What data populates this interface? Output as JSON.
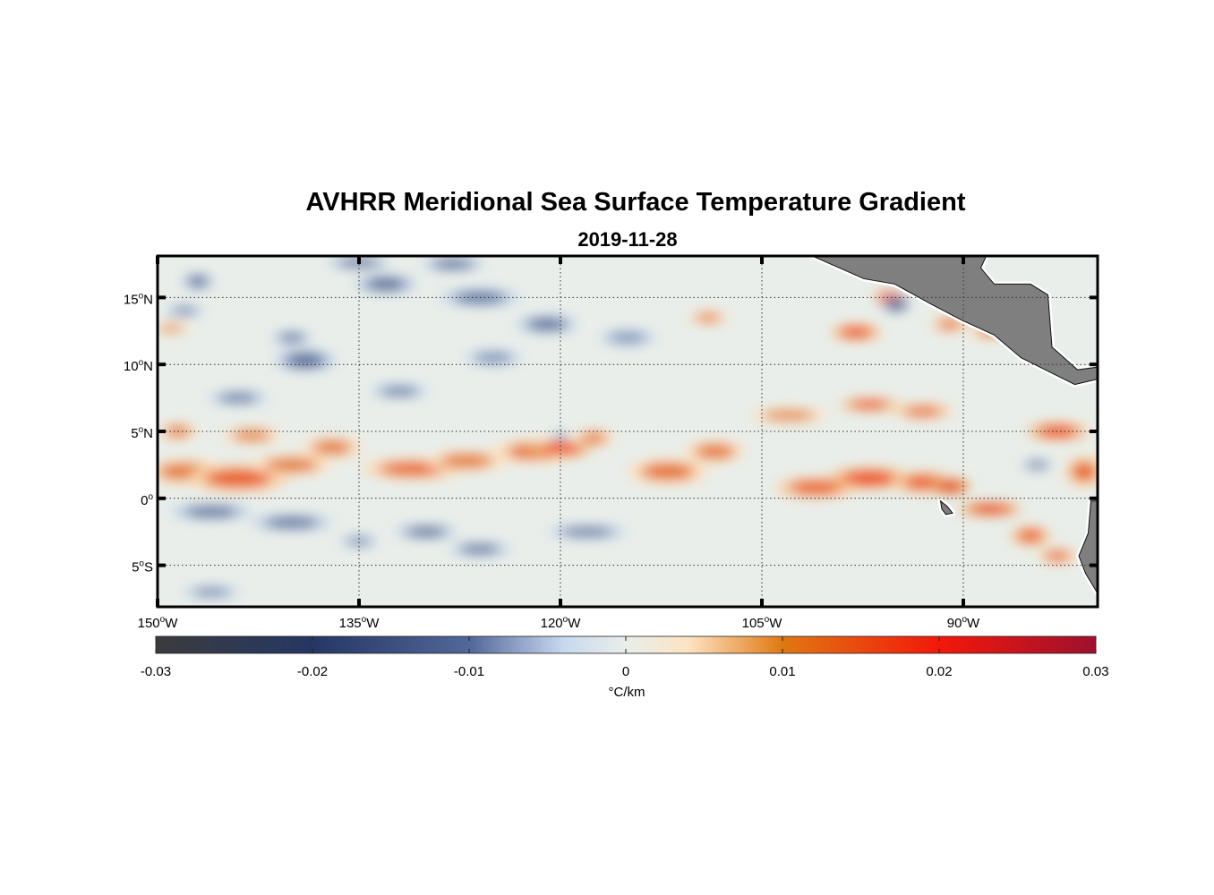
{
  "chart_data": {
    "type": "heatmap",
    "title": "AVHRR Meridional Sea Surface Temperature Gradient",
    "subtitle": "2019-11-28",
    "lon_range": [
      -150,
      -80
    ],
    "lat_range": [
      -8.1,
      18.1
    ],
    "x_ticks": [
      {
        "value": -150,
        "label": "150",
        "suffix": "W"
      },
      {
        "value": -135,
        "label": "135",
        "suffix": "W"
      },
      {
        "value": -120,
        "label": "120",
        "suffix": "W"
      },
      {
        "value": -105,
        "label": "105",
        "suffix": "W"
      },
      {
        "value": -90,
        "label": "90",
        "suffix": "W"
      }
    ],
    "y_ticks": [
      {
        "value": 15,
        "label": "15",
        "suffix": "N"
      },
      {
        "value": 10,
        "label": "10",
        "suffix": "N"
      },
      {
        "value": 5,
        "label": "5",
        "suffix": "N"
      },
      {
        "value": 0,
        "label": "0",
        "suffix": ""
      },
      {
        "value": -5,
        "label": "5",
        "suffix": "S"
      }
    ],
    "grid": true,
    "colorbar": {
      "range": [
        -0.03,
        0.03
      ],
      "ticks": [
        "-0.03",
        "-0.02",
        "-0.01",
        "0",
        "0.01",
        "0.02",
        "0.03"
      ],
      "tick_values": [
        -0.03,
        -0.02,
        -0.01,
        0,
        0.01,
        0.02,
        0.03
      ],
      "label": "°C/km",
      "colors": [
        [
          -0.03,
          "#3b3b3d"
        ],
        [
          -0.02,
          "#243764"
        ],
        [
          -0.01,
          "#52679a"
        ],
        [
          -0.004,
          "#c6d8ee"
        ],
        [
          0,
          "#e9eeea"
        ],
        [
          0.004,
          "#fde3c2"
        ],
        [
          0.01,
          "#e07812"
        ],
        [
          0.02,
          "#f3180a"
        ],
        [
          0.03,
          "#9e1030"
        ]
      ]
    },
    "features": [
      [
        -148,
        2,
        0.011,
        4,
        1.2
      ],
      [
        -144,
        1.5,
        0.014,
        5,
        1.3
      ],
      [
        -140,
        2.5,
        0.011,
        4,
        1
      ],
      [
        -148.5,
        5,
        0.011,
        2,
        0.8
      ],
      [
        -143,
        4.7,
        0.01,
        3,
        0.8
      ],
      [
        -137,
        3.8,
        0.011,
        3,
        1
      ],
      [
        -131,
        2.2,
        0.013,
        5,
        1
      ],
      [
        -127,
        2.8,
        0.011,
        4,
        1
      ],
      [
        -122,
        3.5,
        0.012,
        4,
        1.1
      ],
      [
        -120,
        3.7,
        0.02,
        3,
        0.7
      ],
      [
        -117.5,
        4.5,
        0.011,
        2,
        0.8
      ],
      [
        -112,
        2,
        0.012,
        4,
        1.2
      ],
      [
        -108.5,
        3.5,
        0.012,
        3,
        1
      ],
      [
        -101,
        0.8,
        0.014,
        4,
        1
      ],
      [
        -97,
        1.5,
        0.017,
        4,
        1
      ],
      [
        -93,
        1.2,
        0.015,
        3,
        1
      ],
      [
        -91,
        0.9,
        0.022,
        2,
        0.7
      ],
      [
        -88,
        -0.8,
        0.021,
        3,
        0.6
      ],
      [
        -85,
        -2.8,
        0.015,
        2,
        0.9
      ],
      [
        -83,
        -4.3,
        0.013,
        2,
        0.7
      ],
      [
        -81,
        2,
        0.012,
        2,
        1.5
      ],
      [
        -83,
        5,
        0.017,
        3,
        0.8
      ],
      [
        -97,
        7,
        0.016,
        3,
        0.6
      ],
      [
        -93,
        6.5,
        0.013,
        3,
        0.7
      ],
      [
        -103,
        6.2,
        0.01,
        4,
        0.7
      ],
      [
        -98,
        12.4,
        0.016,
        2.5,
        0.8
      ],
      [
        -95.5,
        15,
        0.02,
        1.5,
        0.6
      ],
      [
        -91,
        13,
        0.012,
        2,
        0.7
      ],
      [
        -88,
        12.5,
        0.012,
        2,
        0.7
      ],
      [
        -109,
        13.5,
        0.011,
        2,
        0.6
      ],
      [
        -149,
        12.7,
        0.009,
        2,
        0.5
      ],
      [
        -95,
        14.5,
        -0.018,
        1.3,
        0.7
      ],
      [
        -146,
        -1,
        -0.013,
        4,
        0.7
      ],
      [
        -140,
        -1.8,
        -0.013,
        4,
        0.7
      ],
      [
        -130,
        -2.5,
        -0.014,
        3,
        0.6
      ],
      [
        -126,
        -3.8,
        -0.013,
        3,
        0.6
      ],
      [
        -118,
        -2.5,
        -0.012,
        4,
        0.6
      ],
      [
        -135,
        -3.2,
        -0.01,
        2,
        0.5
      ],
      [
        -146,
        -7,
        -0.011,
        3,
        0.5
      ],
      [
        -144,
        7.5,
        -0.012,
        3,
        0.6
      ],
      [
        -148,
        14,
        -0.01,
        2,
        0.5
      ],
      [
        -147,
        16.2,
        -0.014,
        1.5,
        0.7
      ],
      [
        -139,
        10.3,
        -0.013,
        3,
        1
      ],
      [
        -140,
        12,
        -0.012,
        2,
        0.6
      ],
      [
        -133,
        16,
        -0.014,
        3,
        0.8
      ],
      [
        -128,
        17.5,
        -0.014,
        3,
        0.6
      ],
      [
        -126,
        15,
        -0.012,
        4,
        0.8
      ],
      [
        -121,
        13,
        -0.013,
        3,
        0.8
      ],
      [
        -132,
        8,
        -0.011,
        3,
        0.6
      ],
      [
        -135,
        17.6,
        -0.015,
        3,
        0.5
      ],
      [
        -84.5,
        2.5,
        -0.015,
        1.5,
        0.4
      ],
      [
        -120,
        4.6,
        -0.014,
        0.6,
        0.4
      ],
      [
        -115,
        12,
        -0.008,
        3,
        0.8
      ],
      [
        -125,
        10.5,
        -0.009,
        3,
        0.7
      ]
    ],
    "land": [
      [
        [
          -101.7,
          18.3
        ],
        [
          -97.4,
          16.4
        ],
        [
          -95.1,
          16
        ],
        [
          -92.4,
          14.5
        ],
        [
          -90.1,
          13.3
        ],
        [
          -87.7,
          12.2
        ],
        [
          -85.7,
          10.5
        ],
        [
          -83.7,
          9.5
        ],
        [
          -81.7,
          8.5
        ],
        [
          -80,
          8.9
        ],
        [
          -80,
          9.8
        ],
        [
          -81.5,
          9.6
        ],
        [
          -83.4,
          11.3
        ],
        [
          -83.7,
          15.2
        ],
        [
          -85,
          16
        ],
        [
          -87.7,
          16
        ],
        [
          -88.7,
          17.2
        ],
        [
          -88.2,
          18.3
        ]
      ],
      [
        [
          -80,
          -0.2
        ],
        [
          -80.5,
          -0.2
        ],
        [
          -80.7,
          -2.6
        ],
        [
          -81.4,
          -4.3
        ],
        [
          -80.9,
          -5.6
        ],
        [
          -80,
          -7.1
        ]
      ],
      [
        [
          -91.7,
          -0.2
        ],
        [
          -91.2,
          -0.6
        ],
        [
          -90.8,
          -1.1
        ],
        [
          -91.3,
          -1.2
        ],
        [
          -91.6,
          -0.8
        ]
      ]
    ]
  }
}
